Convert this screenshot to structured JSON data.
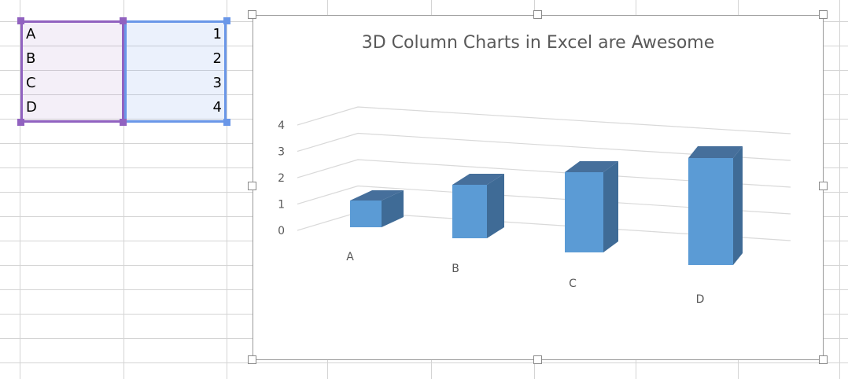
{
  "sheet": {
    "rows": [
      {
        "label": "A",
        "value": "1"
      },
      {
        "label": "B",
        "value": "2"
      },
      {
        "label": "C",
        "value": "3"
      },
      {
        "label": "D",
        "value": "4"
      }
    ]
  },
  "chart_data": {
    "type": "bar",
    "title": "3D Column Charts in Excel are Awesome",
    "categories": [
      "A",
      "B",
      "C",
      "D"
    ],
    "values": [
      1,
      2,
      3,
      4
    ],
    "ylim": [
      0,
      4
    ],
    "yticks": [
      "0",
      "1",
      "2",
      "3",
      "4"
    ],
    "grid": true,
    "style": "3d-column",
    "color": "#5b9bd5"
  }
}
